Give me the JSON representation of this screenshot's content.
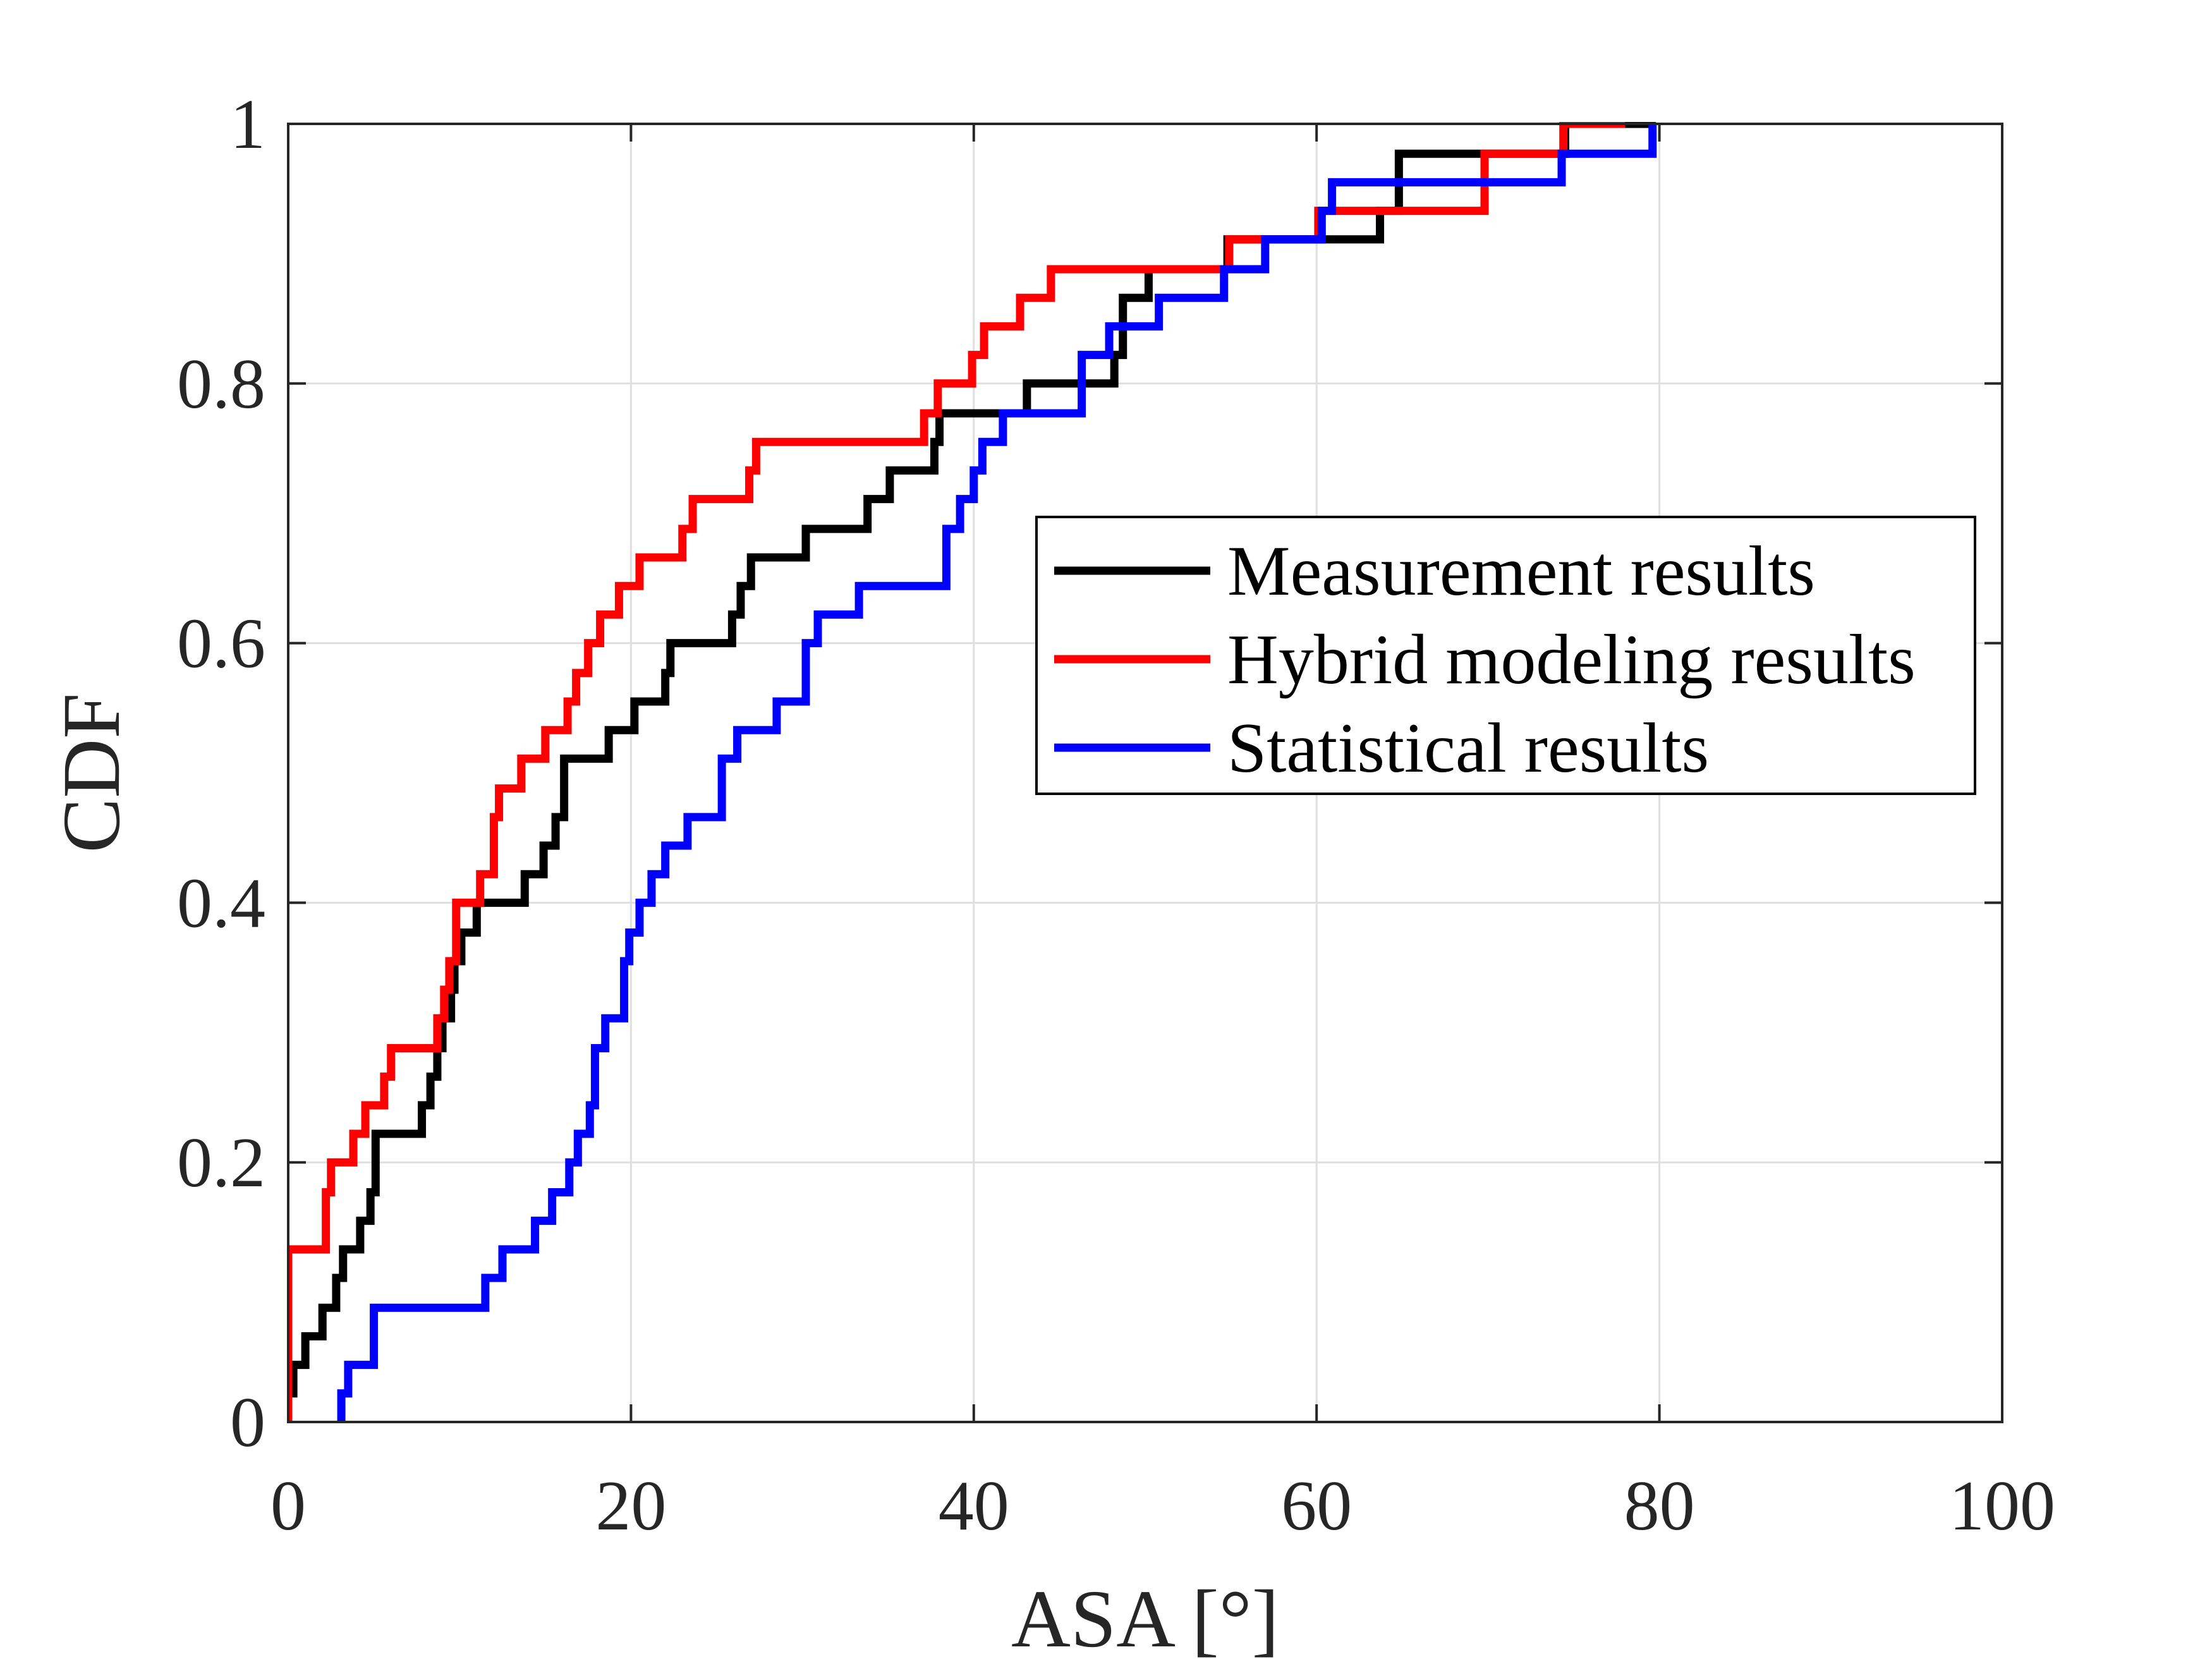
{
  "colors": {
    "background": "#ffffff",
    "axis": "#262626",
    "grid": "#dfdfdf"
  },
  "chart_data": {
    "type": "line",
    "style": "step (empirical CDF)",
    "title": "",
    "xlabel": "ASA [°]",
    "ylabel": "CDF",
    "xlim": [
      0,
      100
    ],
    "ylim": [
      0,
      1
    ],
    "xticks": [
      0,
      20,
      40,
      60,
      80,
      100
    ],
    "yticks": [
      0,
      0.2,
      0.4,
      0.6,
      0.8,
      1
    ],
    "xtick_labels": [
      "0",
      "20",
      "40",
      "60",
      "80",
      "100"
    ],
    "ytick_labels": [
      "0",
      "0.2",
      "0.4",
      "0.6",
      "0.8",
      "1"
    ],
    "grid": true,
    "legend_position": "right-middle",
    "series": [
      {
        "name": "Measurement results",
        "color": "#000000",
        "x": [
          0.0,
          0.3,
          1.0,
          2.0,
          2.8,
          3.2,
          4.2,
          4.8,
          5.1,
          7.8,
          8.3,
          8.7,
          9.0,
          9.5,
          9.7,
          10.1,
          11.0,
          13.8,
          14.9,
          15.6,
          16.1,
          18.7,
          20.2,
          22.0,
          22.3,
          25.9,
          26.4,
          27.0,
          30.2,
          33.8,
          35.1,
          37.7,
          38.0,
          42.0,
          43.1,
          48.2,
          48.7,
          50.2,
          54.8,
          63.7,
          64.8,
          74.5,
          79.8
        ],
        "y": [
          0.022,
          0.044,
          0.066,
          0.088,
          0.111,
          0.133,
          0.155,
          0.177,
          0.222,
          0.244,
          0.266,
          0.288,
          0.311,
          0.333,
          0.355,
          0.377,
          0.4,
          0.422,
          0.444,
          0.466,
          0.511,
          0.533,
          0.555,
          0.577,
          0.6,
          0.622,
          0.644,
          0.666,
          0.688,
          0.711,
          0.733,
          0.755,
          0.777,
          0.777,
          0.8,
          0.822,
          0.866,
          0.888,
          0.911,
          0.933,
          0.977,
          1.0,
          1.0
        ]
      },
      {
        "name": "Hybrid modeling results",
        "color": "#ff0000",
        "x": [
          0.0,
          2.2,
          2.5,
          3.8,
          4.5,
          5.6,
          6.0,
          8.7,
          9.1,
          9.4,
          9.8,
          11.2,
          12.0,
          12.3,
          13.6,
          15.0,
          16.3,
          16.8,
          17.5,
          18.2,
          19.3,
          20.5,
          23.0,
          23.6,
          26.9,
          27.3,
          37.1,
          37.9,
          39.9,
          40.6,
          42.7,
          44.5,
          54.9,
          55.8,
          60.1,
          69.8,
          74.4,
          78.0
        ],
        "y": [
          0.133,
          0.177,
          0.2,
          0.222,
          0.244,
          0.266,
          0.288,
          0.311,
          0.333,
          0.355,
          0.4,
          0.422,
          0.466,
          0.488,
          0.511,
          0.533,
          0.555,
          0.577,
          0.6,
          0.622,
          0.644,
          0.666,
          0.688,
          0.711,
          0.733,
          0.755,
          0.777,
          0.8,
          0.822,
          0.844,
          0.866,
          0.888,
          0.911,
          0.911,
          0.933,
          0.977,
          1.0,
          1.0
        ]
      },
      {
        "name": "Statistical results",
        "color": "#0000ff",
        "x": [
          3.1,
          3.5,
          5.0,
          11.5,
          12.5,
          14.4,
          15.4,
          16.4,
          16.9,
          17.6,
          17.9,
          18.5,
          19.6,
          19.9,
          20.5,
          21.2,
          22.0,
          23.3,
          25.3,
          26.2,
          28.5,
          30.2,
          30.9,
          33.3,
          38.4,
          39.2,
          40.0,
          40.5,
          41.7,
          46.3,
          47.9,
          50.8,
          54.6,
          57.0,
          60.3,
          60.9,
          74.3,
          79.6
        ],
        "y": [
          0.022,
          0.044,
          0.088,
          0.111,
          0.133,
          0.155,
          0.177,
          0.2,
          0.222,
          0.244,
          0.288,
          0.311,
          0.355,
          0.377,
          0.4,
          0.422,
          0.444,
          0.466,
          0.511,
          0.533,
          0.555,
          0.6,
          0.622,
          0.644,
          0.688,
          0.711,
          0.733,
          0.755,
          0.777,
          0.822,
          0.844,
          0.866,
          0.888,
          0.911,
          0.933,
          0.955,
          0.977,
          1.0
        ]
      }
    ]
  }
}
